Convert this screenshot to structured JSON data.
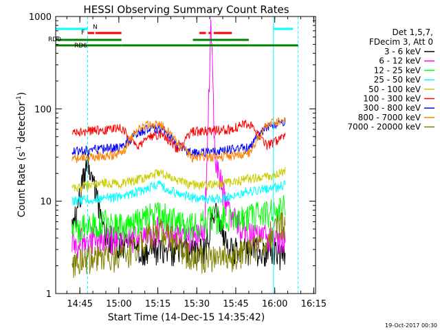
{
  "chart_data": {
    "type": "line",
    "title": "HESSI Observing Summary Count Rates",
    "xlabel": "Start Time (14-Dec-15 14:35:42)",
    "ylabel_main": "Count Rate (s",
    "ylabel_sup1": "-1",
    "ylabel_mid": " detector",
    "ylabel_sup2": "-1",
    "ylabel_end": ")",
    "y_scale": "log",
    "ylim": [
      1,
      1000
    ],
    "xlim": [
      "14:35:42",
      "16:15:42"
    ],
    "x_ticks": [
      "14:45",
      "15:00",
      "15:15",
      "15:30",
      "15:45",
      "16:00",
      "16:15"
    ],
    "y_ticks": [
      "1",
      "10",
      "100",
      "1000"
    ],
    "legend_placement": "right",
    "legend_header": [
      "Det 1,5,7,",
      "FDecim 3, Att 0"
    ],
    "footer": "19-Oct-2017 00:30",
    "flags": [
      {
        "label": "N",
        "color": "#00ffff"
      },
      {
        "label": "F",
        "color": "#ff0000"
      },
      {
        "label": "RD0",
        "color": "#008000"
      },
      {
        "label": "RD6",
        "color": "#008000"
      }
    ],
    "flag_intervals": {
      "N": [
        [
          "14:35:42",
          "14:48:00"
        ],
        [
          "15:59:30",
          "16:07:00"
        ]
      ],
      "F": [
        [
          "14:48:00",
          "14:50:30"
        ],
        [
          "14:51:00",
          "15:01:00"
        ],
        [
          "15:31:00",
          "15:33:30"
        ],
        [
          "15:34:30",
          "15:35:30"
        ],
        [
          "15:36:30",
          "15:43:30"
        ]
      ],
      "RD0": [
        [
          "14:35:42",
          "15:01:00"
        ],
        [
          "15:28:30",
          "15:50:00"
        ]
      ],
      "RD6": [
        [
          "14:35:42",
          "15:01:00"
        ],
        [
          "15:01:00",
          "15:28:30"
        ],
        [
          "15:28:30",
          "15:50:00"
        ],
        [
          "15:50:00",
          "16:09:00"
        ]
      ]
    },
    "night_lines": [
      "14:48:00",
      "15:59:30",
      "16:09:00"
    ],
    "data_gaps": [
      [
        "14:35:42",
        "14:40:30"
      ],
      [
        "16:05:00",
        "16:15:42"
      ]
    ],
    "series": [
      {
        "name": "3 - 6 keV",
        "color": "#000000",
        "x": [
          "14:42:00",
          "14:48:00",
          "14:55:00",
          "15:01:00",
          "15:10:00",
          "15:15:00",
          "15:20:00",
          "15:28:00",
          "15:33:00",
          "15:37:00",
          "15:42:00",
          "15:50:00",
          "16:00:00",
          "16:04:00"
        ],
        "values": [
          5.0,
          30.0,
          4.5,
          3.5,
          3.0,
          3.0,
          3.0,
          3.0,
          3.0,
          8.0,
          3.0,
          3.0,
          3.0,
          2.5
        ]
      },
      {
        "name": "6 - 12 keV",
        "color": "#ff00ff",
        "x": [
          "14:42:00",
          "14:48:00",
          "14:55:00",
          "15:01:00",
          "15:10:00",
          "15:15:00",
          "15:20:00",
          "15:28:00",
          "15:33:00",
          "15:35:30",
          "15:37:00",
          "15:42:00",
          "15:50:00",
          "16:00:00",
          "16:04:00"
        ],
        "values": [
          3.5,
          4.0,
          4.0,
          4.0,
          4.0,
          5.0,
          4.5,
          4.0,
          4.5,
          850,
          30.0,
          8.0,
          4.5,
          4.0,
          4.0
        ]
      },
      {
        "name": "12 - 25 keV",
        "color": "#00ff00",
        "x": [
          "14:42:00",
          "14:48:00",
          "14:55:00",
          "15:01:00",
          "15:10:00",
          "15:15:00",
          "15:20:00",
          "15:28:00",
          "15:35:00",
          "15:42:00",
          "15:50:00",
          "16:00:00",
          "16:04:00"
        ],
        "values": [
          5.0,
          5.5,
          6.0,
          5.5,
          6.5,
          8.0,
          6.5,
          5.5,
          6.5,
          7.0,
          7.0,
          8.0,
          9.0
        ]
      },
      {
        "name": "25 - 50 keV",
        "color": "#00ffff",
        "x": [
          "14:42:00",
          "14:48:00",
          "14:55:00",
          "15:01:00",
          "15:10:00",
          "15:15:00",
          "15:20:00",
          "15:28:00",
          "15:35:00",
          "15:42:00",
          "15:50:00",
          "16:00:00",
          "16:04:00"
        ],
        "values": [
          10.0,
          10.5,
          11.0,
          11.0,
          13.5,
          15.5,
          13.0,
          11.0,
          10.5,
          11.0,
          13.0,
          14.0,
          15.0
        ]
      },
      {
        "name": "50 - 100 keV",
        "color": "#cccc00",
        "x": [
          "14:42:00",
          "14:48:00",
          "14:55:00",
          "15:01:00",
          "15:10:00",
          "15:15:00",
          "15:20:00",
          "15:28:00",
          "15:35:00",
          "15:42:00",
          "15:50:00",
          "16:00:00",
          "16:04:00"
        ],
        "values": [
          14.0,
          15.0,
          16.0,
          15.5,
          18.0,
          20.0,
          18.0,
          15.0,
          15.0,
          16.0,
          17.5,
          19.0,
          21.0
        ]
      },
      {
        "name": "100 - 300 keV",
        "color": "#ff0000",
        "x": [
          "14:42:00",
          "14:48:00",
          "14:55:00",
          "15:01:00",
          "15:07:00",
          "15:12:00",
          "15:17:00",
          "15:23:00",
          "15:28:00",
          "15:35:00",
          "15:42:00",
          "15:50:00",
          "15:57:00",
          "16:04:00"
        ],
        "values": [
          57.0,
          58.0,
          60.0,
          62.0,
          40.0,
          50.0,
          54.0,
          35.0,
          57.0,
          58.0,
          60.0,
          70.0,
          40.0,
          50.0
        ]
      },
      {
        "name": "300 - 800 keV",
        "color": "#0000ff",
        "x": [
          "14:42:00",
          "14:48:00",
          "14:55:00",
          "15:01:00",
          "15:07:00",
          "15:12:00",
          "15:17:00",
          "15:23:00",
          "15:28:00",
          "15:35:00",
          "15:42:00",
          "15:50:00",
          "15:57:00",
          "16:04:00"
        ],
        "values": [
          35.0,
          36.0,
          37.0,
          38.0,
          55.0,
          62.0,
          60.0,
          40.0,
          34.0,
          34.0,
          36.0,
          38.0,
          65.0,
          72.0
        ]
      },
      {
        "name": "800 - 7000 keV",
        "color": "#ff8000",
        "x": [
          "14:42:00",
          "14:48:00",
          "14:55:00",
          "15:01:00",
          "15:07:00",
          "15:12:00",
          "15:17:00",
          "15:23:00",
          "15:28:00",
          "15:35:00",
          "15:42:00",
          "15:50:00",
          "15:57:00",
          "16:04:00"
        ],
        "values": [
          29.0,
          30.0,
          31.0,
          32.0,
          60.0,
          68.0,
          66.0,
          42.0,
          30.0,
          30.0,
          31.0,
          33.0,
          68.0,
          78.0
        ]
      },
      {
        "name": "7000 - 20000 keV",
        "color": "#808000",
        "x": [
          "14:42:00",
          "14:48:00",
          "14:55:00",
          "15:01:00",
          "15:10:00",
          "15:15:00",
          "15:20:00",
          "15:28:00",
          "15:35:00",
          "15:42:00",
          "15:50:00",
          "16:00:00",
          "16:04:00"
        ],
        "values": [
          2.0,
          2.5,
          2.5,
          2.5,
          4.0,
          5.0,
          4.0,
          2.5,
          2.5,
          2.5,
          3.0,
          5.0,
          6.0
        ]
      }
    ]
  }
}
